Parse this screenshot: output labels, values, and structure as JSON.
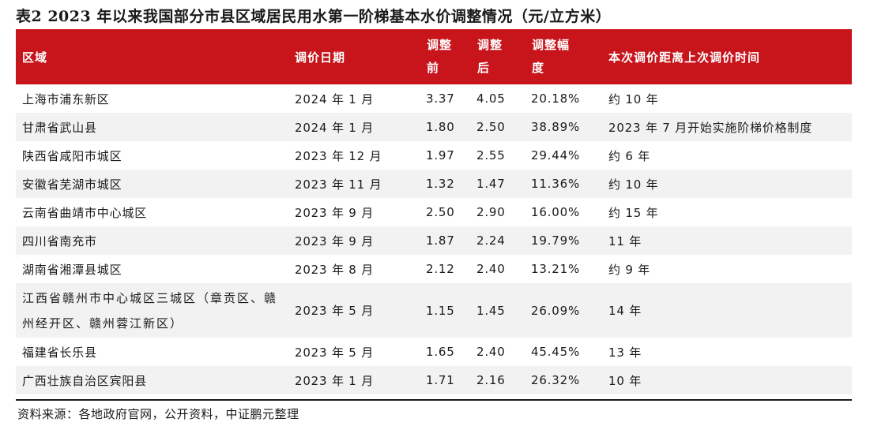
{
  "title": "表2 2023 年以来我国部分市县区域居民用水第一阶梯基本水价调整情况（元/立方米）",
  "headers": {
    "region": "区域",
    "date": "调价日期",
    "before": [
      "调整",
      "前"
    ],
    "after": [
      "调整",
      "后"
    ],
    "change": [
      "调整幅",
      "度"
    ],
    "interval": "本次调价距离上次调价时间"
  },
  "rows": [
    {
      "region": "上海市浦东新区",
      "date": "2024 年 1 月",
      "before": "3.37",
      "after": "4.05",
      "change": "20.18%",
      "interval": "约 10 年"
    },
    {
      "region": "甘肃省武山县",
      "date": "2024 年 1 月",
      "before": "1.80",
      "after": "2.50",
      "change": "38.89%",
      "interval": "2023 年 7 月开始实施阶梯价格制度"
    },
    {
      "region": "陕西省咸阳市城区",
      "date": "2023 年 12 月",
      "before": "1.97",
      "after": "2.55",
      "change": "29.44%",
      "interval": "约 6 年"
    },
    {
      "region": "安徽省芜湖市城区",
      "date": "2023 年 11 月",
      "before": "1.32",
      "after": "1.47",
      "change": "11.36%",
      "interval": "约 10 年"
    },
    {
      "region": "云南省曲靖市中心城区",
      "date": "2023 年 9 月",
      "before": "2.50",
      "after": "2.90",
      "change": "16.00%",
      "interval": "约 15 年"
    },
    {
      "region": "四川省南充市",
      "date": "2023 年 9 月",
      "before": "1.87",
      "after": "2.24",
      "change": "19.79%",
      "interval": "11 年"
    },
    {
      "region": "湖南省湘潭县城区",
      "date": "2023 年 8 月",
      "before": "2.12",
      "after": "2.40",
      "change": "13.21%",
      "interval": "约 9 年"
    },
    {
      "region": "江西省赣州市中心城区三城区（章贡区、赣州经开区、赣州蓉江新区）",
      "date": "2023 年 5 月",
      "before": "1.15",
      "after": "1.45",
      "change": "26.09%",
      "interval": "14 年"
    },
    {
      "region": "福建省长乐县",
      "date": "2023 年 5 月",
      "before": "1.65",
      "after": "2.40",
      "change": "45.45%",
      "interval": "13 年"
    },
    {
      "region": "广西壮族自治区宾阳县",
      "date": "2023 年 1 月",
      "before": "1.71",
      "after": "2.16",
      "change": "26.32%",
      "interval": "10 年"
    }
  ],
  "source": "资料来源：各地政府官网，公开资料，中证鹏元整理",
  "colors": {
    "header_bg": "#c8141b",
    "stripe": "#f2f2f2"
  }
}
